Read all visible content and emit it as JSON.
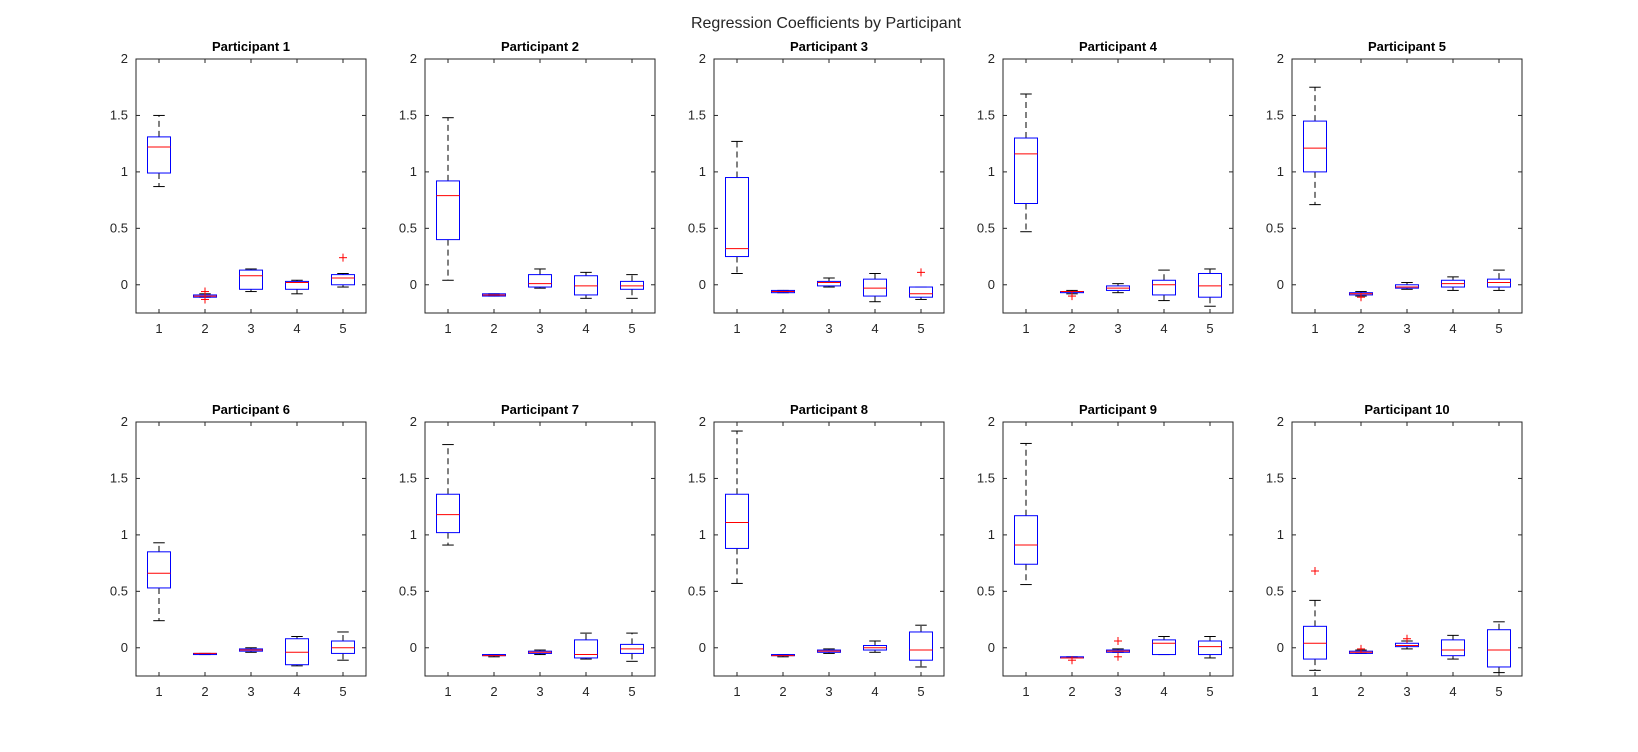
{
  "figure": {
    "title": "Regression Coefficients by Participant",
    "colors": {
      "box": "#0000ff",
      "median": "#ff0000",
      "whisker": "#000000",
      "outlier": "#ff0000",
      "axis": "#262626"
    }
  },
  "chart_data": [
    {
      "type": "boxplot",
      "title": "Participant 1",
      "categories": [
        "1",
        "2",
        "3",
        "4",
        "5"
      ],
      "ylim": [
        -0.25,
        2
      ],
      "yticks": [
        0,
        0.5,
        1,
        1.5,
        2
      ],
      "ytick_labels": [
        "0",
        "0.5",
        "1",
        "1.5",
        "2"
      ],
      "boxes": [
        {
          "min": 0.87,
          "q1": 0.99,
          "median": 1.22,
          "q3": 1.31,
          "max": 1.5,
          "outliers": []
        },
        {
          "min": -0.11,
          "q1": -0.11,
          "median": -0.1,
          "q3": -0.09,
          "max": -0.08,
          "outliers": [
            -0.06,
            -0.13
          ]
        },
        {
          "min": -0.06,
          "q1": -0.04,
          "median": 0.08,
          "q3": 0.13,
          "max": 0.14,
          "outliers": []
        },
        {
          "min": -0.08,
          "q1": -0.04,
          "median": 0.02,
          "q3": 0.03,
          "max": 0.04,
          "outliers": []
        },
        {
          "min": -0.02,
          "q1": 0.0,
          "median": 0.06,
          "q3": 0.09,
          "max": 0.1,
          "outliers": [
            0.24
          ]
        }
      ]
    },
    {
      "type": "boxplot",
      "title": "Participant 2",
      "categories": [
        "1",
        "2",
        "3",
        "4",
        "5"
      ],
      "ylim": [
        -0.25,
        2
      ],
      "yticks": [
        0,
        0.5,
        1,
        1.5,
        2
      ],
      "ytick_labels": [
        "0",
        "0.5",
        "1",
        "1.5",
        "2"
      ],
      "boxes": [
        {
          "min": 0.04,
          "q1": 0.4,
          "median": 0.79,
          "q3": 0.92,
          "max": 1.48,
          "outliers": []
        },
        {
          "min": -0.1,
          "q1": -0.1,
          "median": -0.09,
          "q3": -0.08,
          "max": -0.08,
          "outliers": []
        },
        {
          "min": -0.03,
          "q1": -0.02,
          "median": 0.01,
          "q3": 0.09,
          "max": 0.14,
          "outliers": []
        },
        {
          "min": -0.12,
          "q1": -0.09,
          "median": -0.01,
          "q3": 0.08,
          "max": 0.11,
          "outliers": []
        },
        {
          "min": -0.12,
          "q1": -0.04,
          "median": -0.01,
          "q3": 0.03,
          "max": 0.09,
          "outliers": []
        }
      ]
    },
    {
      "type": "boxplot",
      "title": "Participant 3",
      "categories": [
        "1",
        "2",
        "3",
        "4",
        "5"
      ],
      "ylim": [
        -0.25,
        2
      ],
      "yticks": [
        0,
        0.5,
        1,
        1.5,
        2
      ],
      "ytick_labels": [
        "0",
        "0.5",
        "1",
        "1.5",
        "2"
      ],
      "boxes": [
        {
          "min": 0.1,
          "q1": 0.25,
          "median": 0.32,
          "q3": 0.95,
          "max": 1.27,
          "outliers": []
        },
        {
          "min": -0.07,
          "q1": -0.07,
          "median": -0.06,
          "q3": -0.05,
          "max": -0.05,
          "outliers": []
        },
        {
          "min": -0.02,
          "q1": -0.01,
          "median": 0.02,
          "q3": 0.03,
          "max": 0.06,
          "outliers": []
        },
        {
          "min": -0.15,
          "q1": -0.1,
          "median": -0.03,
          "q3": 0.05,
          "max": 0.1,
          "outliers": []
        },
        {
          "min": -0.13,
          "q1": -0.11,
          "median": -0.08,
          "q3": -0.02,
          "max": -0.02,
          "outliers": [
            0.11
          ]
        }
      ]
    },
    {
      "type": "boxplot",
      "title": "Participant 4",
      "categories": [
        "1",
        "2",
        "3",
        "4",
        "5"
      ],
      "ylim": [
        -0.25,
        2
      ],
      "yticks": [
        0,
        0.5,
        1,
        1.5,
        2
      ],
      "ytick_labels": [
        "0",
        "0.5",
        "1",
        "1.5",
        "2"
      ],
      "boxes": [
        {
          "min": 0.47,
          "q1": 0.72,
          "median": 1.16,
          "q3": 1.3,
          "max": 1.69,
          "outliers": []
        },
        {
          "min": -0.08,
          "q1": -0.07,
          "median": -0.06,
          "q3": -0.06,
          "max": -0.05,
          "outliers": [
            -0.1
          ]
        },
        {
          "min": -0.07,
          "q1": -0.05,
          "median": -0.03,
          "q3": -0.01,
          "max": 0.01,
          "outliers": []
        },
        {
          "min": -0.14,
          "q1": -0.09,
          "median": 0.0,
          "q3": 0.04,
          "max": 0.13,
          "outliers": []
        },
        {
          "min": -0.19,
          "q1": -0.11,
          "median": -0.01,
          "q3": 0.1,
          "max": 0.14,
          "outliers": []
        }
      ]
    },
    {
      "type": "boxplot",
      "title": "Participant 5",
      "categories": [
        "1",
        "2",
        "3",
        "4",
        "5"
      ],
      "ylim": [
        -0.25,
        2
      ],
      "yticks": [
        0,
        0.5,
        1,
        1.5,
        2
      ],
      "ytick_labels": [
        "0",
        "0.5",
        "1",
        "1.5",
        "2"
      ],
      "boxes": [
        {
          "min": 0.71,
          "q1": 1.0,
          "median": 1.21,
          "q3": 1.45,
          "max": 1.75,
          "outliers": []
        },
        {
          "min": -0.1,
          "q1": -0.09,
          "median": -0.08,
          "q3": -0.07,
          "max": -0.06,
          "outliers": [
            -0.11
          ]
        },
        {
          "min": -0.04,
          "q1": -0.03,
          "median": -0.02,
          "q3": 0.0,
          "max": 0.02,
          "outliers": []
        },
        {
          "min": -0.05,
          "q1": -0.02,
          "median": 0.01,
          "q3": 0.04,
          "max": 0.07,
          "outliers": []
        },
        {
          "min": -0.05,
          "q1": -0.02,
          "median": 0.02,
          "q3": 0.05,
          "max": 0.13,
          "outliers": []
        }
      ]
    },
    {
      "type": "boxplot",
      "title": "Participant 6",
      "categories": [
        "1",
        "2",
        "3",
        "4",
        "5"
      ],
      "ylim": [
        -0.25,
        2
      ],
      "yticks": [
        0,
        0.5,
        1,
        1.5,
        2
      ],
      "ytick_labels": [
        "0",
        "0.5",
        "1",
        "1.5",
        "2"
      ],
      "boxes": [
        {
          "min": 0.24,
          "q1": 0.53,
          "median": 0.66,
          "q3": 0.85,
          "max": 0.93,
          "outliers": []
        },
        {
          "min": -0.06,
          "q1": -0.06,
          "median": -0.05,
          "q3": -0.05,
          "max": -0.05,
          "outliers": []
        },
        {
          "min": -0.04,
          "q1": -0.03,
          "median": -0.02,
          "q3": -0.01,
          "max": 0.0,
          "outliers": []
        },
        {
          "min": -0.16,
          "q1": -0.15,
          "median": -0.04,
          "q3": 0.08,
          "max": 0.1,
          "outliers": []
        },
        {
          "min": -0.11,
          "q1": -0.05,
          "median": 0.0,
          "q3": 0.06,
          "max": 0.14,
          "outliers": []
        }
      ]
    },
    {
      "type": "boxplot",
      "title": "Participant 7",
      "categories": [
        "1",
        "2",
        "3",
        "4",
        "5"
      ],
      "ylim": [
        -0.25,
        2
      ],
      "yticks": [
        0,
        0.5,
        1,
        1.5,
        2
      ],
      "ytick_labels": [
        "0",
        "0.5",
        "1",
        "1.5",
        "2"
      ],
      "boxes": [
        {
          "min": 0.91,
          "q1": 1.02,
          "median": 1.18,
          "q3": 1.36,
          "max": 1.8,
          "outliers": []
        },
        {
          "min": -0.08,
          "q1": -0.07,
          "median": -0.07,
          "q3": -0.06,
          "max": -0.06,
          "outliers": []
        },
        {
          "min": -0.06,
          "q1": -0.05,
          "median": -0.04,
          "q3": -0.03,
          "max": -0.02,
          "outliers": []
        },
        {
          "min": -0.1,
          "q1": -0.09,
          "median": -0.06,
          "q3": 0.07,
          "max": 0.13,
          "outliers": []
        },
        {
          "min": -0.12,
          "q1": -0.05,
          "median": -0.01,
          "q3": 0.03,
          "max": 0.13,
          "outliers": []
        }
      ]
    },
    {
      "type": "boxplot",
      "title": "Participant 8",
      "categories": [
        "1",
        "2",
        "3",
        "4",
        "5"
      ],
      "ylim": [
        -0.25,
        2
      ],
      "yticks": [
        0,
        0.5,
        1,
        1.5,
        2
      ],
      "ytick_labels": [
        "0",
        "0.5",
        "1",
        "1.5",
        "2"
      ],
      "boxes": [
        {
          "min": 0.57,
          "q1": 0.88,
          "median": 1.11,
          "q3": 1.36,
          "max": 1.92,
          "outliers": []
        },
        {
          "min": -0.08,
          "q1": -0.07,
          "median": -0.07,
          "q3": -0.06,
          "max": -0.06,
          "outliers": []
        },
        {
          "min": -0.05,
          "q1": -0.04,
          "median": -0.03,
          "q3": -0.02,
          "max": -0.01,
          "outliers": []
        },
        {
          "min": -0.04,
          "q1": -0.02,
          "median": 0.0,
          "q3": 0.02,
          "max": 0.06,
          "outliers": []
        },
        {
          "min": -0.17,
          "q1": -0.11,
          "median": -0.02,
          "q3": 0.14,
          "max": 0.2,
          "outliers": []
        }
      ]
    },
    {
      "type": "boxplot",
      "title": "Participant 9",
      "categories": [
        "1",
        "2",
        "3",
        "4",
        "5"
      ],
      "ylim": [
        -0.25,
        2
      ],
      "yticks": [
        0,
        0.5,
        1,
        1.5,
        2
      ],
      "ytick_labels": [
        "0",
        "0.5",
        "1",
        "1.5",
        "2"
      ],
      "boxes": [
        {
          "min": 0.56,
          "q1": 0.74,
          "median": 0.91,
          "q3": 1.17,
          "max": 1.81,
          "outliers": []
        },
        {
          "min": -0.09,
          "q1": -0.09,
          "median": -0.09,
          "q3": -0.08,
          "max": -0.08,
          "outliers": [
            -0.11
          ]
        },
        {
          "min": -0.04,
          "q1": -0.04,
          "median": -0.03,
          "q3": -0.02,
          "max": -0.01,
          "outliers": [
            0.06,
            -0.08
          ]
        },
        {
          "min": -0.06,
          "q1": -0.06,
          "median": 0.04,
          "q3": 0.07,
          "max": 0.1,
          "outliers": []
        },
        {
          "min": -0.09,
          "q1": -0.06,
          "median": 0.01,
          "q3": 0.06,
          "max": 0.1,
          "outliers": []
        }
      ]
    },
    {
      "type": "boxplot",
      "title": "Participant 10",
      "categories": [
        "1",
        "2",
        "3",
        "4",
        "5"
      ],
      "ylim": [
        -0.25,
        2
      ],
      "yticks": [
        0,
        0.5,
        1,
        1.5,
        2
      ],
      "ytick_labels": [
        "0",
        "0.5",
        "1",
        "1.5",
        "2"
      ],
      "boxes": [
        {
          "min": -0.2,
          "q1": -0.1,
          "median": 0.04,
          "q3": 0.19,
          "max": 0.42,
          "outliers": [
            0.68
          ]
        },
        {
          "min": -0.05,
          "q1": -0.05,
          "median": -0.04,
          "q3": -0.03,
          "max": -0.02,
          "outliers": [
            -0.01
          ]
        },
        {
          "min": -0.01,
          "q1": 0.01,
          "median": 0.02,
          "q3": 0.04,
          "max": 0.06,
          "outliers": [
            0.08
          ]
        },
        {
          "min": -0.1,
          "q1": -0.07,
          "median": -0.02,
          "q3": 0.07,
          "max": 0.11,
          "outliers": []
        },
        {
          "min": -0.22,
          "q1": -0.17,
          "median": -0.02,
          "q3": 0.16,
          "max": 0.23,
          "outliers": []
        }
      ]
    }
  ]
}
